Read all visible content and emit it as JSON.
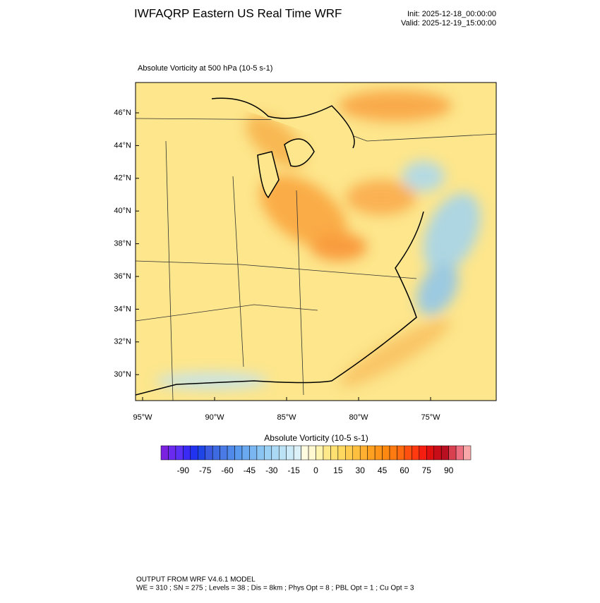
{
  "header": {
    "title": "IWFAQRP Eastern US Real Time WRF",
    "init": "Init: 2025-12-18_00:00:00",
    "valid": "Valid: 2025-12-19_15:00:00"
  },
  "map": {
    "subtitle": "Absolute Vorticity at 500 hPa   (10-5 s-1)",
    "lat_labels": [
      "46°N",
      "44°N",
      "42°N",
      "40°N",
      "38°N",
      "36°N",
      "34°N",
      "32°N",
      "30°N"
    ],
    "lon_labels": [
      "95°W",
      "90°W",
      "85°W",
      "80°W",
      "75°W"
    ]
  },
  "colorbar": {
    "title": "Absolute Vorticity  (10-5 s-1)",
    "range": [
      -105,
      105
    ],
    "ticks": [
      -90,
      -75,
      -60,
      -45,
      -30,
      -15,
      0,
      15,
      30,
      45,
      60,
      75,
      90
    ],
    "colors": [
      "#7b22e0",
      "#6a2af0",
      "#5a30f5",
      "#3a2af5",
      "#2233f0",
      "#1f45e6",
      "#3a5ae0",
      "#3d6ae0",
      "#4a7ae6",
      "#4f8aea",
      "#5a9aee",
      "#6aa8f0",
      "#7ab6f2",
      "#8ac4f2",
      "#9ad0f4",
      "#aad8f5",
      "#bce2f6",
      "#cceaf8",
      "#dcf0f8",
      "#fffbe0",
      "#fff8d0",
      "#fff3b0",
      "#ffe98a",
      "#ffe070",
      "#ffd860",
      "#ffcc50",
      "#ffc040",
      "#ffb030",
      "#ffa020",
      "#ff9418",
      "#ff8810",
      "#ff7a10",
      "#ff6a10",
      "#ff5010",
      "#ff3a10",
      "#f51e10",
      "#e01010",
      "#c80c18",
      "#b81020",
      "#d84050",
      "#ee7080",
      "#f8a8a8"
    ]
  },
  "footer": {
    "line1": "OUTPUT FROM WRF V4.6.1 MODEL",
    "line2": "WE = 310 ; SN = 275 ; Levels = 38 ; Dis = 8km ; Phys Opt = 8 ; PBL Opt = 1 ; Cu Opt = 3"
  }
}
